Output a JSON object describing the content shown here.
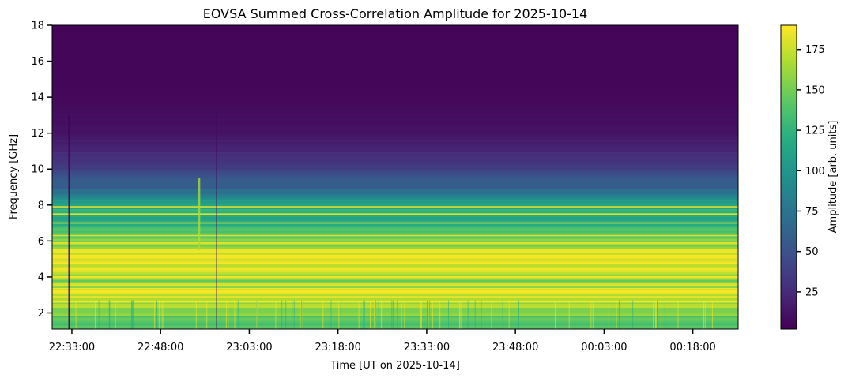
{
  "chart_data": {
    "type": "heatmap",
    "title": "EOVSA Summed Cross-Correlation Amplitude for 2025-10-14",
    "xlabel": "Time [UT on 2025-10-14]",
    "ylabel": "Frequency [GHz]",
    "colorbar_label": "Amplitude [arb. units]",
    "colormap": "viridis",
    "x_range": [
      "22:29:40",
      "00:25:40"
    ],
    "ylim": [
      1.1,
      18
    ],
    "color_range": [
      2,
      190
    ],
    "x_ticks": [
      "22:33:00",
      "22:48:00",
      "23:03:00",
      "23:18:00",
      "23:33:00",
      "23:48:00",
      "00:03:00",
      "00:18:00"
    ],
    "y_ticks": [
      2,
      4,
      6,
      8,
      10,
      12,
      14,
      16,
      18
    ],
    "colorbar_ticks": [
      25,
      50,
      75,
      100,
      125,
      150,
      175
    ],
    "frequency_profile_ghz": [
      {
        "freq": 1.1,
        "amp": 140
      },
      {
        "freq": 2.0,
        "amp": 150
      },
      {
        "freq": 2.6,
        "amp": 170
      },
      {
        "freq": 3.2,
        "amp": 185
      },
      {
        "freq": 3.8,
        "amp": 155
      },
      {
        "freq": 4.3,
        "amp": 178
      },
      {
        "freq": 5.2,
        "amp": 188
      },
      {
        "freq": 6.0,
        "amp": 150
      },
      {
        "freq": 7.0,
        "amp": 125
      },
      {
        "freq": 8.0,
        "amp": 115
      },
      {
        "freq": 9.0,
        "amp": 60
      },
      {
        "freq": 10.5,
        "amp": 30
      },
      {
        "freq": 12.0,
        "amp": 12
      },
      {
        "freq": 14.0,
        "amp": 6
      },
      {
        "freq": 18.0,
        "amp": 4
      }
    ],
    "bright_lines_ghz": [
      2.6,
      3.2,
      3.35,
      4.0,
      4.5,
      5.2,
      5.5,
      5.9,
      6.3,
      7.0,
      7.5,
      7.9
    ],
    "dark_vertical_lines_utc": [
      "22:32:30",
      "22:57:30"
    ],
    "bright_vertical_feature_utc": "22:54:30"
  }
}
